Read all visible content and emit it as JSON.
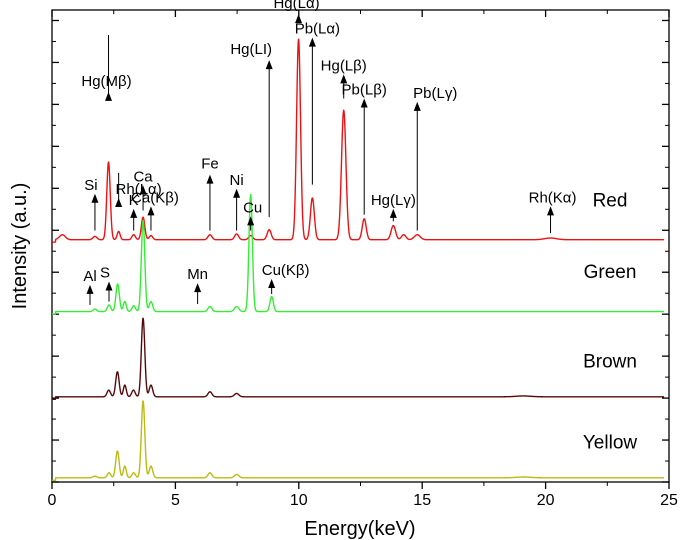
{
  "chart_data": {
    "type": "line",
    "xlabel": "Energy(keV)",
    "ylabel": "Intensity (a.u.)",
    "xlim": [
      0,
      25
    ],
    "x_ticks": [
      "0",
      "5",
      "10",
      "15",
      "20",
      "25"
    ],
    "y_tick_labels": "none",
    "grid": false,
    "legend": "none",
    "series": [
      {
        "name": "Red",
        "color": "#ee1111",
        "baseline": 0.29,
        "peaks": [
          [
            0.42,
            0.006,
            0.12
          ],
          [
            1.74,
            0.004,
            0.08
          ],
          [
            2.29,
            0.093,
            0.07
          ],
          [
            2.7,
            0.01,
            0.06
          ],
          [
            3.31,
            0.006,
            0.07
          ],
          [
            3.69,
            0.027,
            0.07
          ],
          [
            4.01,
            0.005,
            0.07
          ],
          [
            6.4,
            0.006,
            0.08
          ],
          [
            7.48,
            0.007,
            0.08
          ],
          [
            8.05,
            0.005,
            0.08
          ],
          [
            8.8,
            0.012,
            0.08
          ],
          [
            9.99,
            0.24,
            0.08
          ],
          [
            10.55,
            0.05,
            0.08
          ],
          [
            11.82,
            0.155,
            0.09
          ],
          [
            12.65,
            0.025,
            0.08
          ],
          [
            13.83,
            0.017,
            0.09
          ],
          [
            14.25,
            0.006,
            0.09
          ],
          [
            14.8,
            0.006,
            0.12
          ],
          [
            20.2,
            0.002,
            0.25
          ]
        ]
      },
      {
        "name": "Green",
        "color": "#33ee33",
        "baseline": 0.204,
        "peaks": [
          [
            1.74,
            0.003,
            0.07
          ],
          [
            2.31,
            0.008,
            0.07
          ],
          [
            2.66,
            0.033,
            0.07
          ],
          [
            2.95,
            0.012,
            0.06
          ],
          [
            3.31,
            0.007,
            0.07
          ],
          [
            3.69,
            0.109,
            0.07
          ],
          [
            4.01,
            0.012,
            0.07
          ],
          [
            6.4,
            0.006,
            0.08
          ],
          [
            7.48,
            0.006,
            0.09
          ],
          [
            8.05,
            0.14,
            0.07
          ],
          [
            8.9,
            0.018,
            0.07
          ]
        ]
      },
      {
        "name": "Brown",
        "color": "#550a0a",
        "baseline": 0.102,
        "peaks": [
          [
            2.3,
            0.008,
            0.07
          ],
          [
            2.65,
            0.03,
            0.07
          ],
          [
            2.95,
            0.014,
            0.06
          ],
          [
            3.3,
            0.008,
            0.07
          ],
          [
            3.69,
            0.094,
            0.07
          ],
          [
            4.01,
            0.014,
            0.07
          ],
          [
            6.4,
            0.006,
            0.08
          ],
          [
            7.48,
            0.004,
            0.09
          ],
          [
            19.1,
            0.001,
            0.3
          ]
        ]
      },
      {
        "name": "Yellow",
        "color": "#bbbb11",
        "baseline": 0.005,
        "peaks": [
          [
            1.74,
            0.002,
            0.08
          ],
          [
            2.31,
            0.006,
            0.07
          ],
          [
            2.65,
            0.032,
            0.07
          ],
          [
            2.95,
            0.014,
            0.06
          ],
          [
            3.31,
            0.006,
            0.07
          ],
          [
            3.69,
            0.092,
            0.07
          ],
          [
            4.01,
            0.014,
            0.07
          ],
          [
            6.4,
            0.006,
            0.08
          ],
          [
            7.48,
            0.004,
            0.09
          ],
          [
            19.1,
            0.001,
            0.3
          ]
        ]
      }
    ],
    "annotations": [
      {
        "text": "Hg(Mβ)",
        "x": 2.29,
        "tail": 0.535,
        "head": 0.467
      },
      {
        "text": "Rh(Lα)",
        "x": 2.7,
        "tail": 0.37,
        "head": 0.34
      },
      {
        "text": "Si",
        "x": 1.74,
        "tail": 0.301,
        "head": 0.345
      },
      {
        "text": "K",
        "x": 3.31,
        "tail": 0.301,
        "head": 0.327
      },
      {
        "text": "Ca",
        "x": 3.69,
        "tail": 0.325,
        "head": 0.355
      },
      {
        "text": "Ca(Kβ)",
        "x": 4.01,
        "tail": 0.301,
        "head": 0.33
      },
      {
        "text": "Fe",
        "x": 6.4,
        "tail": 0.301,
        "head": 0.368
      },
      {
        "text": "Ni",
        "x": 7.48,
        "tail": 0.301,
        "head": 0.351
      },
      {
        "text": "Cu",
        "x": 8.05,
        "tail": 0.301,
        "head": 0.318
      },
      {
        "text": "Hg(LI)",
        "x": 8.8,
        "tail": 0.317,
        "head": 0.505
      },
      {
        "text": "Hg(Lα)",
        "x": 9.99,
        "tail": 0.555,
        "head": 0.56
      },
      {
        "text": "Pb(Lα)",
        "x": 10.55,
        "tail": 0.356,
        "head": 0.532
      },
      {
        "text": "Hg(Lβ)",
        "x": 11.82,
        "tail": 0.459,
        "head": 0.488
      },
      {
        "text": "Pb(Lβ)",
        "x": 12.65,
        "tail": 0.32,
        "head": 0.459
      },
      {
        "text": "Pb(Lγ)",
        "x": 14.8,
        "tail": 0.301,
        "head": 0.455
      },
      {
        "text": "Hg(Lγ)",
        "x": 13.83,
        "tail": 0.312,
        "head": 0.327
      },
      {
        "text": "Rh(Kα)",
        "x": 20.2,
        "tail": 0.298,
        "head": 0.33
      },
      {
        "text": "Al",
        "x": 1.54,
        "tail": 0.212,
        "head": 0.236
      },
      {
        "text": "S",
        "x": 2.31,
        "tail": 0.216,
        "head": 0.24
      },
      {
        "text": "Mn",
        "x": 5.9,
        "tail": 0.213,
        "head": 0.238
      },
      {
        "text": "Cu(Kβ)",
        "x": 8.9,
        "tail": 0.225,
        "head": 0.243
      }
    ]
  }
}
